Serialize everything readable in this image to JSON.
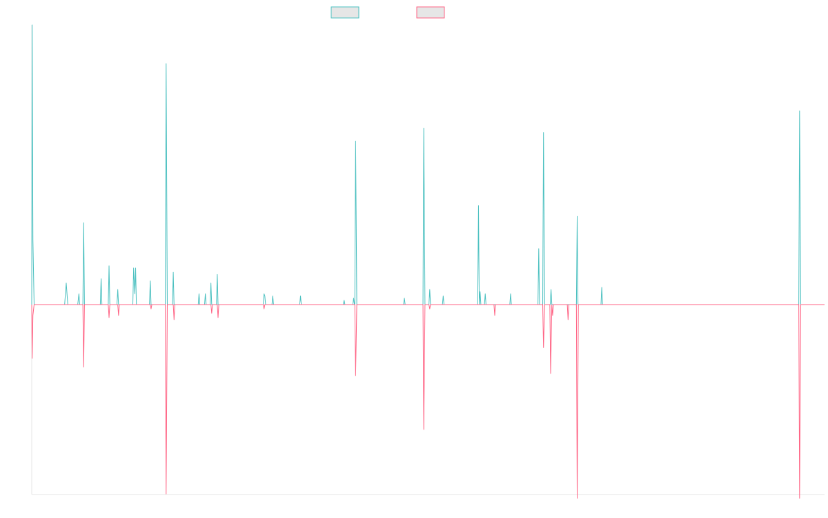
{
  "chart_data": {
    "type": "line",
    "title": "",
    "xlabel": "",
    "ylabel": "",
    "grid": false,
    "legend_position": "top-center",
    "ylim": [
      -1,
      1.2
    ],
    "xlim": [
      0,
      1000
    ],
    "series": [
      {
        "color": "#4bc0c0",
        "fill": "#e6e6e6",
        "points": [
          [
            0,
            0
          ],
          [
            0.5,
            1.3
          ],
          [
            1.5,
            0.3
          ],
          [
            3,
            0
          ],
          [
            41.5,
            0
          ],
          [
            43.5,
            0.1
          ],
          [
            45.5,
            0
          ],
          [
            58,
            0
          ],
          [
            59.5,
            0.05
          ],
          [
            60.5,
            0
          ],
          [
            64.5,
            0
          ],
          [
            65.5,
            0.38
          ],
          [
            66.5,
            0
          ],
          [
            86.5,
            0
          ],
          [
            87.5,
            0.12
          ],
          [
            88.5,
            0
          ],
          [
            96.5,
            0
          ],
          [
            97.5,
            0.18
          ],
          [
            98.5,
            0
          ],
          [
            107.5,
            0
          ],
          [
            108.5,
            0.07
          ],
          [
            109.5,
            0
          ],
          [
            127.5,
            0
          ],
          [
            128.5,
            0.17
          ],
          [
            130,
            0.05
          ],
          [
            131,
            0.17
          ],
          [
            132,
            0
          ],
          [
            148.5,
            0
          ],
          [
            149.5,
            0.11
          ],
          [
            150.5,
            0
          ],
          [
            168.5,
            0
          ],
          [
            169.5,
            1.12
          ],
          [
            171,
            0
          ],
          [
            177.5,
            0
          ],
          [
            178.5,
            0.15
          ],
          [
            179.5,
            0
          ],
          [
            210,
            0
          ],
          [
            211,
            0.05
          ],
          [
            212,
            0
          ],
          [
            218,
            0
          ],
          [
            219,
            0.05
          ],
          [
            220,
            0
          ],
          [
            225,
            0
          ],
          [
            226,
            0.1
          ],
          [
            227,
            0
          ],
          [
            233,
            0
          ],
          [
            234,
            0.14
          ],
          [
            235,
            0
          ],
          [
            292,
            0
          ],
          [
            293,
            0.05
          ],
          [
            294,
            0.04
          ],
          [
            295,
            0
          ],
          [
            303,
            0
          ],
          [
            304,
            0.04
          ],
          [
            305,
            0
          ],
          [
            338,
            0
          ],
          [
            339,
            0.04
          ],
          [
            340,
            0
          ],
          [
            393,
            0
          ],
          [
            394,
            0.02
          ],
          [
            395,
            0
          ],
          [
            405,
            0
          ],
          [
            406,
            0.03
          ],
          [
            407,
            0
          ],
          [
            407.5,
            0
          ],
          [
            408.5,
            0.76
          ],
          [
            410,
            0
          ],
          [
            469,
            0
          ],
          [
            470,
            0.03
          ],
          [
            471,
            0
          ],
          [
            493.5,
            0
          ],
          [
            494.5,
            0.82
          ],
          [
            496,
            0
          ],
          [
            501,
            0
          ],
          [
            502,
            0.07
          ],
          [
            503,
            0
          ],
          [
            518,
            0
          ],
          [
            519,
            0.04
          ],
          [
            520,
            0
          ],
          [
            562.5,
            0
          ],
          [
            563.5,
            0.46
          ],
          [
            564.5,
            0
          ],
          [
            565.5,
            0.06
          ],
          [
            566.5,
            0
          ],
          [
            571,
            0
          ],
          [
            572,
            0.05
          ],
          [
            573,
            0
          ],
          [
            603,
            0
          ],
          [
            604,
            0.05
          ],
          [
            605,
            0
          ],
          [
            638.5,
            0
          ],
          [
            639.5,
            0.26
          ],
          [
            640.5,
            0
          ],
          [
            644.5,
            0
          ],
          [
            645.5,
            0.8
          ],
          [
            647,
            0
          ],
          [
            654,
            0
          ],
          [
            655,
            0.07
          ],
          [
            656,
            0
          ],
          [
            687,
            0
          ],
          [
            688,
            0.41
          ],
          [
            689,
            0
          ],
          [
            718,
            0
          ],
          [
            719,
            0.08
          ],
          [
            720,
            0
          ],
          [
            967.5,
            0
          ],
          [
            968.5,
            0.9
          ],
          [
            970,
            0
          ],
          [
            1000,
            0
          ]
        ]
      },
      {
        "color": "#ff6384",
        "fill": "#e6e6e6",
        "points": [
          [
            0,
            0
          ],
          [
            0.5,
            -0.25
          ],
          [
            1.5,
            -0.05
          ],
          [
            3,
            0
          ],
          [
            64.5,
            0
          ],
          [
            65.5,
            -0.29
          ],
          [
            66.5,
            0
          ],
          [
            96.5,
            0
          ],
          [
            97.5,
            -0.06
          ],
          [
            98.5,
            0
          ],
          [
            108.5,
            0
          ],
          [
            109.5,
            -0.05
          ],
          [
            110.5,
            0
          ],
          [
            149.5,
            0
          ],
          [
            150.5,
            -0.02
          ],
          [
            151.5,
            0
          ],
          [
            168.5,
            0
          ],
          [
            169.5,
            -0.88
          ],
          [
            171,
            0
          ],
          [
            178.5,
            0
          ],
          [
            179.5,
            -0.07
          ],
          [
            180.5,
            0
          ],
          [
            226,
            0
          ],
          [
            227,
            -0.04
          ],
          [
            228,
            0
          ],
          [
            234,
            0
          ],
          [
            235,
            -0.06
          ],
          [
            236,
            0
          ],
          [
            292,
            0
          ],
          [
            293,
            -0.02
          ],
          [
            294,
            0
          ],
          [
            407.5,
            0
          ],
          [
            408.5,
            -0.33
          ],
          [
            410,
            0
          ],
          [
            493.5,
            0
          ],
          [
            494.5,
            -0.58
          ],
          [
            496,
            0
          ],
          [
            501,
            0
          ],
          [
            502,
            -0.02
          ],
          [
            503,
            0
          ],
          [
            583,
            0
          ],
          [
            584,
            -0.05
          ],
          [
            585,
            0
          ],
          [
            644.5,
            0
          ],
          [
            645.5,
            -0.2
          ],
          [
            647,
            0
          ],
          [
            653.5,
            0
          ],
          [
            654.5,
            -0.32
          ],
          [
            656,
            0
          ],
          [
            657,
            -0.05
          ],
          [
            658,
            0
          ],
          [
            675.5,
            0
          ],
          [
            676.5,
            -0.07
          ],
          [
            677.5,
            0
          ],
          [
            687,
            0
          ],
          [
            688,
            -0.9
          ],
          [
            689.5,
            0
          ],
          [
            967.5,
            0
          ],
          [
            968.5,
            -0.9
          ],
          [
            970,
            0
          ],
          [
            1000,
            0
          ]
        ]
      }
    ]
  }
}
